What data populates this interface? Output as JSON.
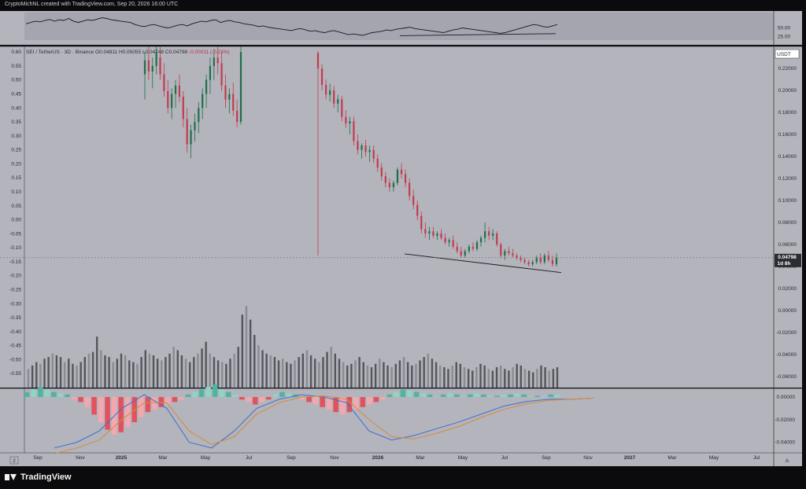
{
  "header": {
    "attribution": "CryptoMichNL created with TradingView.com, Sep 20, 2026 16:00 UTC"
  },
  "legend": {
    "symbol": "SEI / TetherUS · 3D · Binance",
    "o": "O0.04811",
    "h": "H0.05055",
    "l": "L0.04748",
    "c": "C0.04798",
    "change": "-0.00011 (-0.23%)"
  },
  "price_tag": {
    "value": "0.04798",
    "countdown": "1d 8h",
    "currency": "USDT"
  },
  "brand": {
    "name": "TradingView"
  },
  "footer": {
    "left_icon": "2",
    "right_icon": "A"
  },
  "colors": {
    "pane": "#b3b4bc",
    "rsi_band": "#a4a5ae",
    "up": "#1e6f49",
    "down": "#c43a4e",
    "volume": "#55565c",
    "volume_light": "#8a8b92",
    "macd_pos": "#4fb5a0",
    "macd_pos_light": "#8fd4c4",
    "macd_neg": "#e2525e",
    "macd_neg_light": "#f3a8b0",
    "macd_line": "#3d6fd1",
    "signal_line": "#d98a3a",
    "trendline": "#1b1b1f"
  },
  "chart_data": {
    "type": "candlestick",
    "symbol": "SEI/USDT",
    "timeframe": "3D",
    "price_axis_right": {
      "ticks": [
        "0.22000",
        "0.20000",
        "0.18000",
        "0.16000",
        "0.14000",
        "0.12000",
        "0.10000",
        "0.08000",
        "0.06000",
        "0.04000",
        "0.02000",
        "0.00000",
        "-0.02000",
        "-0.04000",
        "-0.06000"
      ],
      "range": [
        -0.07,
        0.24
      ]
    },
    "overlay_axis_left": {
      "ticks": [
        "0.60",
        "0.55",
        "0.50",
        "0.45",
        "0.40",
        "0.35",
        "0.30",
        "0.25",
        "0.20",
        "0.15",
        "0.10",
        "0.05",
        "0.00",
        "-0.05",
        "-0.10",
        "-0.15",
        "-0.20",
        "-0.25",
        "-0.30",
        "-0.35",
        "-0.40",
        "-0.45",
        "-0.50",
        "-0.55"
      ],
      "range": [
        -0.6,
        0.62
      ]
    },
    "x_axis_labels": [
      "Sep",
      "Nov",
      "2025",
      "Mar",
      "May",
      "Jul",
      "Sep",
      "Nov",
      "2026",
      "Mar",
      "May",
      "Jul",
      "Sep",
      "Nov",
      "2027",
      "Mar",
      "May",
      "Jul"
    ],
    "candles_left_axis": [
      [
        0.52,
        0.6,
        0.43,
        0.57
      ],
      [
        0.57,
        0.62,
        0.5,
        0.53
      ],
      [
        0.53,
        0.58,
        0.47,
        0.55
      ],
      [
        0.55,
        0.62,
        0.52,
        0.6
      ],
      [
        0.58,
        0.62,
        0.5,
        0.52
      ],
      [
        0.52,
        0.56,
        0.44,
        0.46
      ],
      [
        0.46,
        0.5,
        0.38,
        0.4
      ],
      [
        0.4,
        0.47,
        0.36,
        0.45
      ],
      [
        0.45,
        0.5,
        0.4,
        0.48
      ],
      [
        0.48,
        0.52,
        0.42,
        0.44
      ],
      [
        0.44,
        0.46,
        0.33,
        0.36
      ],
      [
        0.36,
        0.4,
        0.24,
        0.27
      ],
      [
        0.27,
        0.34,
        0.22,
        0.32
      ],
      [
        0.32,
        0.38,
        0.28,
        0.35
      ],
      [
        0.35,
        0.42,
        0.31,
        0.4
      ],
      [
        0.4,
        0.47,
        0.36,
        0.45
      ],
      [
        0.45,
        0.52,
        0.4,
        0.5
      ],
      [
        0.5,
        0.58,
        0.45,
        0.55
      ],
      [
        0.55,
        0.61,
        0.5,
        0.58
      ],
      [
        0.58,
        0.62,
        0.52,
        0.56
      ],
      [
        0.56,
        0.6,
        0.46,
        0.48
      ],
      [
        0.48,
        0.52,
        0.4,
        0.43
      ],
      [
        0.43,
        0.47,
        0.38,
        0.45
      ],
      [
        0.45,
        0.49,
        0.37,
        0.39
      ],
      [
        0.39,
        0.43,
        0.33,
        0.35
      ],
      [
        0.35,
        0.62,
        0.34,
        0.6
      ]
    ],
    "candles_right_axis": [
      [
        0.234,
        0.236,
        0.05,
        0.22
      ],
      [
        0.22,
        0.224,
        0.2,
        0.205
      ],
      [
        0.205,
        0.21,
        0.192,
        0.196
      ],
      [
        0.196,
        0.206,
        0.19,
        0.2
      ],
      [
        0.2,
        0.204,
        0.184,
        0.188
      ],
      [
        0.188,
        0.196,
        0.18,
        0.192
      ],
      [
        0.192,
        0.195,
        0.172,
        0.176
      ],
      [
        0.176,
        0.182,
        0.166,
        0.17
      ],
      [
        0.17,
        0.176,
        0.16,
        0.172
      ],
      [
        0.172,
        0.176,
        0.15,
        0.154
      ],
      [
        0.154,
        0.16,
        0.142,
        0.146
      ],
      [
        0.146,
        0.152,
        0.138,
        0.15
      ],
      [
        0.15,
        0.155,
        0.14,
        0.144
      ],
      [
        0.144,
        0.15,
        0.135,
        0.146
      ],
      [
        0.146,
        0.15,
        0.134,
        0.138
      ],
      [
        0.138,
        0.142,
        0.126,
        0.13
      ],
      [
        0.13,
        0.134,
        0.118,
        0.122
      ],
      [
        0.122,
        0.126,
        0.112,
        0.116
      ],
      [
        0.116,
        0.12,
        0.108,
        0.112
      ],
      [
        0.112,
        0.118,
        0.108,
        0.116
      ],
      [
        0.116,
        0.13,
        0.114,
        0.128
      ],
      [
        0.128,
        0.134,
        0.12,
        0.124
      ],
      [
        0.124,
        0.128,
        0.112,
        0.116
      ],
      [
        0.116,
        0.12,
        0.1,
        0.104
      ],
      [
        0.104,
        0.11,
        0.092,
        0.096
      ],
      [
        0.096,
        0.1,
        0.082,
        0.086
      ],
      [
        0.086,
        0.09,
        0.07,
        0.074
      ],
      [
        0.074,
        0.08,
        0.066,
        0.07
      ],
      [
        0.07,
        0.076,
        0.064,
        0.072
      ],
      [
        0.072,
        0.076,
        0.066,
        0.068
      ],
      [
        0.068,
        0.072,
        0.064,
        0.07
      ],
      [
        0.07,
        0.074,
        0.064,
        0.066
      ],
      [
        0.066,
        0.07,
        0.06,
        0.062
      ],
      [
        0.062,
        0.066,
        0.058,
        0.064
      ],
      [
        0.064,
        0.068,
        0.056,
        0.058
      ],
      [
        0.058,
        0.062,
        0.052,
        0.054
      ],
      [
        0.054,
        0.058,
        0.048,
        0.05
      ],
      [
        0.05,
        0.056,
        0.048,
        0.054
      ],
      [
        0.054,
        0.06,
        0.052,
        0.058
      ],
      [
        0.058,
        0.062,
        0.054,
        0.056
      ],
      [
        0.056,
        0.064,
        0.054,
        0.062
      ],
      [
        0.062,
        0.068,
        0.058,
        0.066
      ],
      [
        0.066,
        0.08,
        0.062,
        0.072
      ],
      [
        0.072,
        0.076,
        0.064,
        0.068
      ],
      [
        0.068,
        0.074,
        0.064,
        0.07
      ],
      [
        0.07,
        0.072,
        0.058,
        0.06
      ],
      [
        0.06,
        0.062,
        0.048,
        0.05
      ],
      [
        0.05,
        0.056,
        0.046,
        0.054
      ],
      [
        0.054,
        0.058,
        0.05,
        0.052
      ],
      [
        0.052,
        0.056,
        0.048,
        0.05
      ],
      [
        0.05,
        0.052,
        0.046,
        0.048
      ],
      [
        0.048,
        0.05,
        0.044,
        0.046
      ],
      [
        0.046,
        0.048,
        0.042,
        0.044
      ],
      [
        0.044,
        0.046,
        0.04,
        0.042
      ],
      [
        0.042,
        0.046,
        0.04,
        0.044
      ],
      [
        0.044,
        0.05,
        0.042,
        0.048
      ],
      [
        0.048,
        0.052,
        0.042,
        0.044
      ],
      [
        0.044,
        0.052,
        0.042,
        0.05
      ],
      [
        0.05,
        0.054,
        0.044,
        0.046
      ],
      [
        0.046,
        0.05,
        0.04,
        0.042
      ],
      [
        0.042,
        0.052,
        0.04,
        0.048
      ]
    ],
    "trendline_right_axis": [
      [
        0.061,
        0.0515
      ],
      [
        0.1,
        0.0345
      ]
    ],
    "rsi": {
      "ticks": [
        "50.00",
        "25.00"
      ],
      "range": [
        0,
        100
      ],
      "values": [
        62,
        66,
        70,
        68,
        72,
        75,
        70,
        74,
        72,
        78,
        70,
        66,
        70,
        74,
        72,
        76,
        80,
        78,
        74,
        72,
        70,
        68,
        66,
        60,
        56,
        54,
        58,
        60,
        56,
        52,
        50,
        54,
        58,
        60,
        56,
        62,
        66,
        70,
        68,
        72,
        74,
        66,
        70,
        72,
        68,
        66,
        62,
        60,
        58,
        54,
        56,
        52,
        50,
        48,
        46,
        44,
        42,
        46,
        48,
        44,
        40,
        42,
        38,
        36,
        40,
        42,
        38,
        34,
        30,
        32,
        30,
        28,
        32,
        36,
        38,
        40,
        44,
        42,
        46,
        48,
        50,
        52,
        48,
        46,
        44,
        42,
        40,
        38,
        36,
        40,
        44,
        46,
        50,
        48,
        46,
        44,
        42,
        40,
        38,
        36,
        34,
        36,
        40,
        44,
        48,
        52,
        56,
        60,
        58,
        54,
        52,
        56,
        60
      ],
      "divergence_line": [
        [
          0.637,
          27
        ],
        [
          0.897,
          33
        ]
      ]
    },
    "volume": [
      22,
      26,
      30,
      28,
      34,
      36,
      40,
      38,
      36,
      30,
      34,
      28,
      26,
      30,
      36,
      40,
      42,
      60,
      44,
      38,
      36,
      30,
      34,
      40,
      38,
      32,
      30,
      28,
      36,
      44,
      40,
      38,
      34,
      32,
      36,
      40,
      48,
      44,
      38,
      34,
      30,
      36,
      40,
      46,
      54,
      40,
      36,
      32,
      30,
      28,
      34,
      40,
      48,
      86,
      96,
      80,
      62,
      50,
      44,
      40,
      38,
      36,
      32,
      34,
      30,
      28,
      32,
      36,
      40,
      44,
      38,
      34,
      30,
      36,
      42,
      48,
      40,
      34,
      30,
      26,
      28,
      32,
      36,
      30,
      26,
      24,
      28,
      34,
      30,
      26,
      24,
      28,
      32,
      36,
      30,
      26,
      28,
      32,
      36,
      40,
      34,
      30,
      26,
      24,
      22,
      26,
      30,
      28,
      24,
      22,
      20,
      24,
      28,
      26,
      22,
      20,
      24,
      26,
      22,
      20,
      24,
      28,
      26,
      22,
      20,
      18,
      22,
      26,
      24,
      20,
      22,
      24
    ],
    "macd_histogram": [
      4,
      6,
      8,
      6,
      4,
      3,
      2,
      -2,
      -4,
      -8,
      -14,
      -20,
      -26,
      -30,
      -28,
      -24,
      -20,
      -16,
      -12,
      -10,
      -8,
      -6,
      -4,
      -2,
      2,
      4,
      6,
      8,
      10,
      6,
      4,
      2,
      -2,
      -4,
      -6,
      -4,
      -2,
      2,
      4,
      3,
      2,
      -2,
      -4,
      -6,
      -8,
      -10,
      -12,
      -14,
      -12,
      -10,
      -8,
      -6,
      -4,
      -2,
      2,
      4,
      6,
      5,
      4,
      3,
      2,
      1,
      2,
      3,
      2,
      1,
      2,
      3,
      2,
      1,
      1,
      2,
      2,
      3,
      2,
      1,
      1,
      1,
      2,
      2
    ],
    "macd_line_points": [
      [
        0.04,
        -0.045
      ],
      [
        0.07,
        -0.04
      ],
      [
        0.1,
        -0.03
      ],
      [
        0.13,
        -0.01
      ],
      [
        0.16,
        0.002
      ],
      [
        0.19,
        -0.01
      ],
      [
        0.22,
        -0.04
      ],
      [
        0.25,
        -0.045
      ],
      [
        0.28,
        -0.03
      ],
      [
        0.31,
        -0.01
      ],
      [
        0.34,
        -0.002
      ],
      [
        0.37,
        0.002
      ],
      [
        0.4,
        0.0
      ],
      [
        0.43,
        -0.005
      ],
      [
        0.46,
        -0.03
      ],
      [
        0.49,
        -0.038
      ],
      [
        0.52,
        -0.034
      ],
      [
        0.55,
        -0.028
      ],
      [
        0.58,
        -0.022
      ],
      [
        0.61,
        -0.015
      ],
      [
        0.64,
        -0.008
      ],
      [
        0.67,
        -0.004
      ],
      [
        0.7,
        -0.002
      ],
      [
        0.73,
        -0.002
      ],
      [
        0.76,
        -0.001
      ]
    ],
    "signal_line_points": [
      [
        0.04,
        -0.05
      ],
      [
        0.07,
        -0.045
      ],
      [
        0.1,
        -0.038
      ],
      [
        0.13,
        -0.02
      ],
      [
        0.16,
        -0.005
      ],
      [
        0.19,
        -0.005
      ],
      [
        0.22,
        -0.03
      ],
      [
        0.25,
        -0.042
      ],
      [
        0.28,
        -0.035
      ],
      [
        0.31,
        -0.015
      ],
      [
        0.34,
        -0.005
      ],
      [
        0.37,
        0.0
      ],
      [
        0.4,
        0.001
      ],
      [
        0.43,
        -0.002
      ],
      [
        0.46,
        -0.02
      ],
      [
        0.49,
        -0.035
      ],
      [
        0.52,
        -0.037
      ],
      [
        0.55,
        -0.032
      ],
      [
        0.58,
        -0.026
      ],
      [
        0.61,
        -0.018
      ],
      [
        0.64,
        -0.011
      ],
      [
        0.67,
        -0.006
      ],
      [
        0.7,
        -0.003
      ],
      [
        0.73,
        -0.002
      ],
      [
        0.76,
        -0.001
      ]
    ],
    "macd_ticks": [
      "0.00000",
      "-0.02000",
      "-0.04000"
    ],
    "grid": false,
    "legend_position": "top-left"
  }
}
